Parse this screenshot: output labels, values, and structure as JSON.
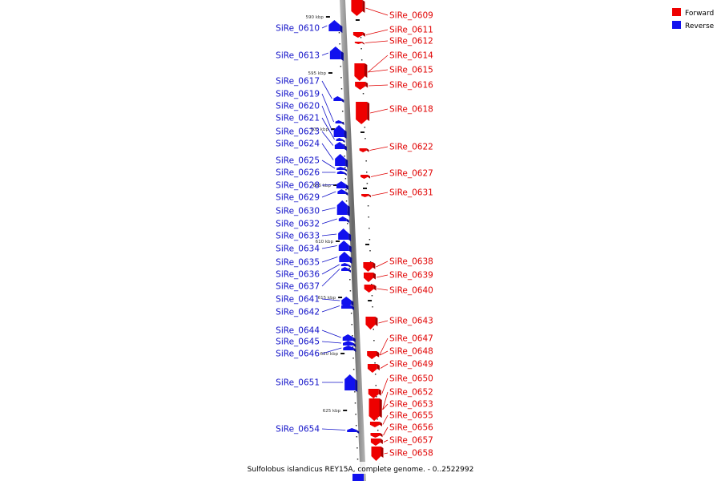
{
  "caption": "Sulfolobus islandicus REY15A, complete genome. - 0..2522992",
  "legend": {
    "forward_label": "Forward",
    "reverse_label": "Reverse",
    "forward_color": "#ee0000",
    "reverse_color": "#1111ee"
  },
  "scale_ticks": [
    "590 kbp",
    "595 kbp",
    "600 kbp",
    "605 kbp",
    "610 kbp",
    "615 kbp",
    "620 kbp",
    "625 kbp"
  ],
  "forward_genes": [
    "SiRe_0609",
    "SiRe_0611",
    "SiRe_0612",
    "SiRe_0614",
    "SiRe_0615",
    "SiRe_0616",
    "SiRe_0618",
    "SiRe_0622",
    "SiRe_0627",
    "SiRe_0631",
    "SiRe_0638",
    "SiRe_0639",
    "SiRe_0640",
    "SiRe_0643",
    "SiRe_0647",
    "SiRe_0648",
    "SiRe_0649",
    "SiRe_0650",
    "SiRe_0652",
    "SiRe_0653",
    "SiRe_0655",
    "SiRe_0656",
    "SiRe_0657",
    "SiRe_0658"
  ],
  "reverse_genes": [
    "SiRe_0610",
    "SiRe_0613",
    "SiRe_0617",
    "SiRe_0619",
    "SiRe_0620",
    "SiRe_0621",
    "SiRe_0623",
    "SiRe_0624",
    "SiRe_0625",
    "SiRe_0626",
    "SiRe_0628",
    "SiRe_0629",
    "SiRe_0630",
    "SiRe_0632",
    "SiRe_0633",
    "SiRe_0634",
    "SiRe_0635",
    "SiRe_0636",
    "SiRe_0637",
    "SiRe_0641",
    "SiRe_0642",
    "SiRe_0644",
    "SiRe_0645",
    "SiRe_0646",
    "SiRe_0651",
    "SiRe_0654"
  ]
}
